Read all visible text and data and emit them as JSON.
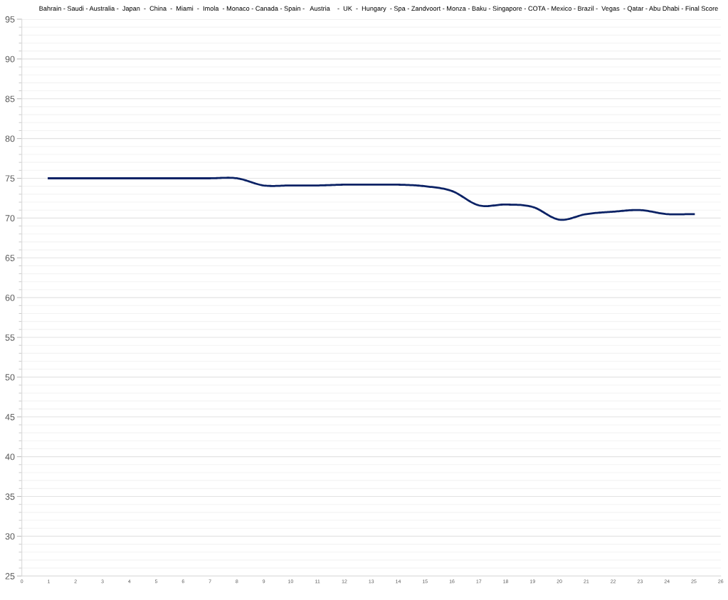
{
  "chart_data": {
    "type": "line",
    "title": "Bahrain - Saudi - Australia -  Japan  -  China  -  Miami  -  Imola  - Monaco - Canada - Spain -   Austria    -  UK  -  Hungary  - Spa - Zandvoort - Monza - Baku - Singapore - COTA - Mexico - Brazil -  Vegas  - Qatar - Abu Dhabi - Final Score",
    "x": [
      1,
      2,
      3,
      4,
      5,
      6,
      7,
      8,
      9,
      10,
      11,
      12,
      13,
      14,
      15,
      16,
      17,
      18,
      19,
      20,
      21,
      22,
      23,
      24,
      25
    ],
    "series": [
      {
        "color": "#0b2265",
        "values": [
          75,
          75,
          75,
          75,
          75,
          75,
          75,
          75,
          74.1,
          74.1,
          74.1,
          74.2,
          74.2,
          74.2,
          74.0,
          73.4,
          71.6,
          71.7,
          71.4,
          69.8,
          70.5,
          70.8,
          71.0,
          70.5,
          70.5
        ]
      }
    ],
    "xlim": [
      0,
      26
    ],
    "xticks": [
      0,
      1,
      2,
      3,
      4,
      5,
      6,
      7,
      8,
      9,
      10,
      11,
      12,
      13,
      14,
      15,
      16,
      17,
      18,
      19,
      20,
      21,
      22,
      23,
      24,
      25,
      26
    ],
    "ylim": [
      25,
      95
    ],
    "yticks": [
      25,
      30,
      35,
      40,
      45,
      50,
      55,
      60,
      65,
      70,
      75,
      80,
      85,
      90,
      95
    ],
    "grid": "y",
    "legend": false,
    "marker": "none",
    "line_style": "solid"
  }
}
